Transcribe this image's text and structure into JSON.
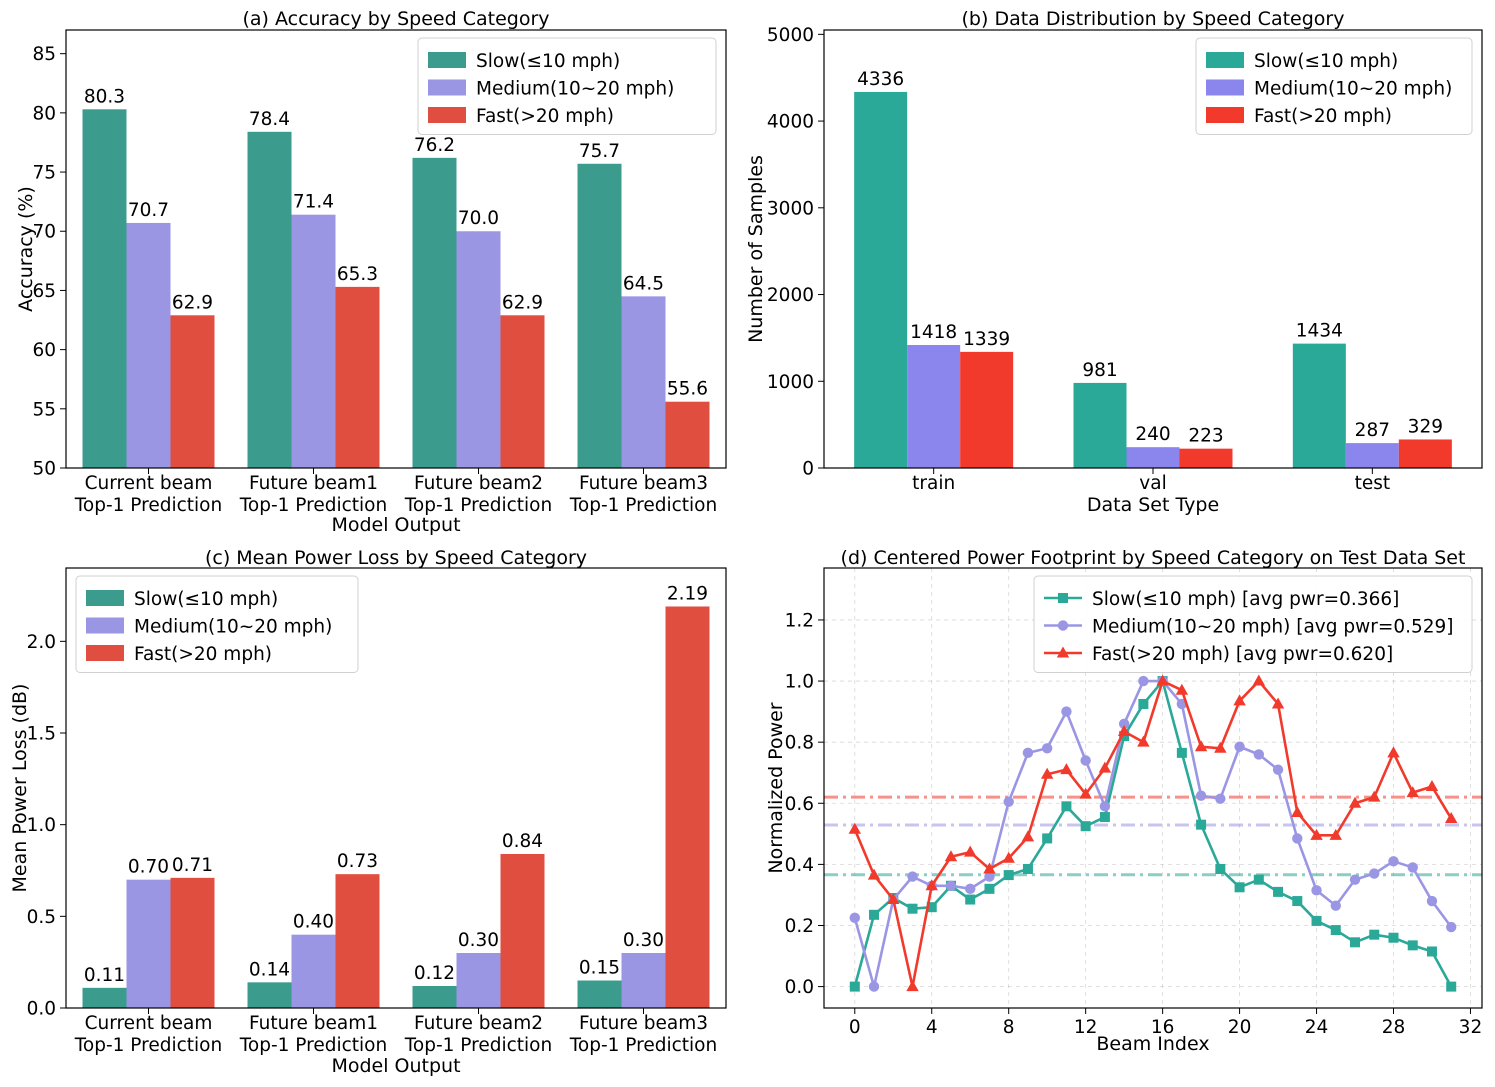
{
  "colors": {
    "slow_a": "#3b9b8c",
    "medium_a": "#9b96e4",
    "fast_a": "#e04e40",
    "slow_b": "#2aa898",
    "medium_b": "#8b85ee",
    "fast_b": "#f23a2c"
  },
  "chart_data": [
    {
      "type": "bar",
      "title": "(a) Accuracy by Speed Category",
      "xlabel": "Model Output",
      "ylabel": "Accuracy (%)",
      "ylim": [
        50,
        87
      ],
      "yticks": [
        50,
        55,
        60,
        65,
        70,
        75,
        80,
        85
      ],
      "categories": [
        [
          "Current beam",
          "Top-1 Prediction"
        ],
        [
          "Future beam1",
          "Top-1 Prediction"
        ],
        [
          "Future beam2",
          "Top-1 Prediction"
        ],
        [
          "Future beam3",
          "Top-1 Prediction"
        ]
      ],
      "series": [
        {
          "name": "Slow(≤10 mph)",
          "color": "#3b9b8c",
          "values": [
            80.3,
            78.4,
            76.2,
            75.7
          ],
          "labels": [
            "80.3",
            "78.4",
            "76.2",
            "75.7"
          ]
        },
        {
          "name": "Medium(10~20 mph)",
          "color": "#9b96e4",
          "values": [
            70.7,
            71.4,
            70.0,
            64.5
          ],
          "labels": [
            "70.7",
            "71.4",
            "70.0",
            "64.5"
          ]
        },
        {
          "name": "Fast(>20 mph)",
          "color": "#e04e40",
          "values": [
            62.9,
            65.3,
            62.9,
            55.6
          ],
          "labels": [
            "62.9",
            "65.3",
            "62.9",
            "55.6"
          ]
        }
      ],
      "legend": "top-right"
    },
    {
      "type": "bar",
      "title": "(b) Data Distribution by Speed Category",
      "xlabel": "Data Set Type",
      "ylabel": "Number of Samples",
      "ylim": [
        0,
        5050
      ],
      "yticks": [
        0,
        1000,
        2000,
        3000,
        4000,
        5000
      ],
      "categories": [
        [
          "train"
        ],
        [
          "val"
        ],
        [
          "test"
        ]
      ],
      "series": [
        {
          "name": "Slow(≤10 mph)",
          "color": "#2aa898",
          "values": [
            4336,
            981,
            1434
          ],
          "labels": [
            "4336",
            "981",
            "1434"
          ]
        },
        {
          "name": "Medium(10~20 mph)",
          "color": "#8b85ee",
          "values": [
            1418,
            240,
            287
          ],
          "labels": [
            "1418",
            "240",
            "287"
          ]
        },
        {
          "name": "Fast(>20 mph)",
          "color": "#f23a2c",
          "values": [
            1339,
            223,
            329
          ],
          "labels": [
            "1339",
            "223",
            "329"
          ]
        }
      ],
      "legend": "top-right"
    },
    {
      "type": "bar",
      "title": "(c) Mean Power Loss by Speed Category",
      "xlabel": "Model Output",
      "ylabel": "Mean Power Loss (dB)",
      "ylim": [
        0,
        2.4
      ],
      "yticks": [
        0.0,
        0.5,
        1.0,
        1.5,
        2.0
      ],
      "ytick_labels": [
        "0.0",
        "0.5",
        "1.0",
        "1.5",
        "2.0"
      ],
      "categories": [
        [
          "Current beam",
          "Top-1 Prediction"
        ],
        [
          "Future beam1",
          "Top-1 Prediction"
        ],
        [
          "Future beam2",
          "Top-1 Prediction"
        ],
        [
          "Future beam3",
          "Top-1 Prediction"
        ]
      ],
      "series": [
        {
          "name": "Slow(≤10 mph)",
          "color": "#3b9b8c",
          "values": [
            0.11,
            0.14,
            0.12,
            0.15
          ],
          "labels": [
            "0.11",
            "0.14",
            "0.12",
            "0.15"
          ]
        },
        {
          "name": "Medium(10~20 mph)",
          "color": "#9b96e4",
          "values": [
            0.7,
            0.4,
            0.3,
            0.3
          ],
          "labels": [
            "0.70",
            "0.40",
            "0.30",
            "0.30"
          ]
        },
        {
          "name": "Fast(>20 mph)",
          "color": "#e04e40",
          "values": [
            0.71,
            0.73,
            0.84,
            2.19
          ],
          "labels": [
            "0.71",
            "0.73",
            "0.84",
            "2.19"
          ]
        }
      ],
      "legend": "top-left"
    },
    {
      "type": "line",
      "title": "(d) Centered Power Footprint by Speed Category on Test Data Set",
      "xlabel": "Beam Index",
      "ylabel": "Normalized Power",
      "xlim": [
        -1.6,
        32.6
      ],
      "ylim": [
        -0.07,
        1.37
      ],
      "xticks": [
        0,
        4,
        8,
        12,
        16,
        20,
        24,
        28,
        32
      ],
      "yticks": [
        0.0,
        0.2,
        0.4,
        0.6,
        0.8,
        1.0,
        1.2
      ],
      "ytick_labels": [
        "0.0",
        "0.2",
        "0.4",
        "0.6",
        "0.8",
        "1.0",
        "1.2"
      ],
      "grid": true,
      "x": [
        0,
        1,
        2,
        3,
        4,
        5,
        6,
        7,
        8,
        9,
        10,
        11,
        12,
        13,
        14,
        15,
        16,
        17,
        18,
        19,
        20,
        21,
        22,
        23,
        24,
        25,
        26,
        27,
        28,
        29,
        30,
        31
      ],
      "series": [
        {
          "name": "Slow(≤10 mph) [avg pwr=0.366]",
          "color": "#2aa898",
          "marker": "square",
          "avg": 0.366,
          "values": [
            0.0,
            0.235,
            0.29,
            0.255,
            0.26,
            0.33,
            0.285,
            0.32,
            0.365,
            0.385,
            0.485,
            0.59,
            0.525,
            0.555,
            0.82,
            0.925,
            1.0,
            0.765,
            0.53,
            0.385,
            0.325,
            0.35,
            0.31,
            0.28,
            0.215,
            0.185,
            0.145,
            0.17,
            0.16,
            0.135,
            0.115,
            0.0
          ]
        },
        {
          "name": "Medium(10~20 mph) [avg pwr=0.529]",
          "color": "#9b96e4",
          "marker": "circle",
          "avg": 0.529,
          "values": [
            0.225,
            0.0,
            0.285,
            0.36,
            0.33,
            0.33,
            0.32,
            0.36,
            0.605,
            0.765,
            0.78,
            0.9,
            0.74,
            0.59,
            0.86,
            1.0,
            1.0,
            0.925,
            0.625,
            0.615,
            0.785,
            0.76,
            0.71,
            0.485,
            0.315,
            0.265,
            0.35,
            0.37,
            0.41,
            0.39,
            0.28,
            0.195
          ]
        },
        {
          "name": "Fast(>20 mph) [avg pwr=0.620]",
          "color": "#f23a2c",
          "marker": "triangle",
          "avg": 0.62,
          "values": [
            0.515,
            0.365,
            0.285,
            0.0,
            0.33,
            0.425,
            0.44,
            0.385,
            0.42,
            0.49,
            0.695,
            0.71,
            0.63,
            0.715,
            0.835,
            0.8,
            1.0,
            0.97,
            0.785,
            0.78,
            0.935,
            1.0,
            0.925,
            0.57,
            0.495,
            0.495,
            0.6,
            0.62,
            0.765,
            0.635,
            0.655,
            0.55
          ]
        }
      ],
      "legend": "top-right"
    }
  ]
}
